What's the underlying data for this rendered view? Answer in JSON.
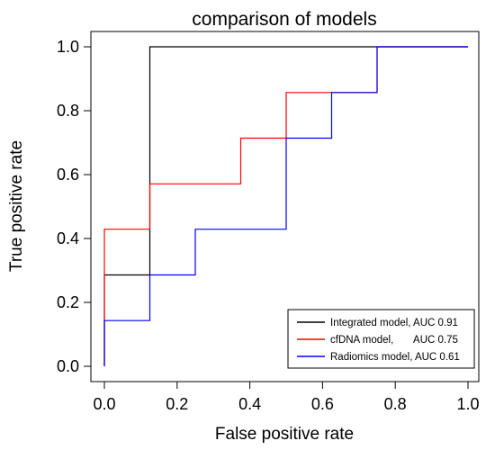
{
  "chart_data": {
    "type": "line",
    "title": "comparison of models",
    "xlabel": "False positive rate",
    "ylabel": "True positive rate",
    "xlim": [
      0,
      1
    ],
    "ylim": [
      0,
      1
    ],
    "x_ticks": [
      "0.0",
      "0.2",
      "0.4",
      "0.6",
      "0.8",
      "1.0"
    ],
    "y_ticks": [
      "0.0",
      "0.2",
      "0.4",
      "0.6",
      "0.8",
      "1.0"
    ],
    "grid": false,
    "legend_position": "bottom-right",
    "series": [
      {
        "name": "Integrated model, AUC 0.91",
        "color": "#000000",
        "points": [
          [
            0,
            0
          ],
          [
            0,
            0.286
          ],
          [
            0.125,
            0.286
          ],
          [
            0.125,
            1.0
          ],
          [
            1.0,
            1.0
          ]
        ]
      },
      {
        "name": "cfDNA model,       AUC 0.75",
        "color": "#ff0000",
        "points": [
          [
            0,
            0
          ],
          [
            0,
            0.429
          ],
          [
            0.125,
            0.429
          ],
          [
            0.125,
            0.571
          ],
          [
            0.375,
            0.571
          ],
          [
            0.375,
            0.714
          ],
          [
            0.5,
            0.714
          ],
          [
            0.5,
            0.857
          ],
          [
            0.75,
            0.857
          ],
          [
            0.75,
            1.0
          ],
          [
            1.0,
            1.0
          ]
        ]
      },
      {
        "name": "Radiomics model, AUC 0.61",
        "color": "#0000ff",
        "points": [
          [
            0,
            0
          ],
          [
            0,
            0.143
          ],
          [
            0.125,
            0.143
          ],
          [
            0.125,
            0.286
          ],
          [
            0.25,
            0.286
          ],
          [
            0.25,
            0.429
          ],
          [
            0.5,
            0.429
          ],
          [
            0.5,
            0.714
          ],
          [
            0.625,
            0.714
          ],
          [
            0.625,
            0.857
          ],
          [
            0.75,
            0.857
          ],
          [
            0.75,
            1.0
          ],
          [
            1.0,
            1.0
          ]
        ]
      }
    ]
  }
}
